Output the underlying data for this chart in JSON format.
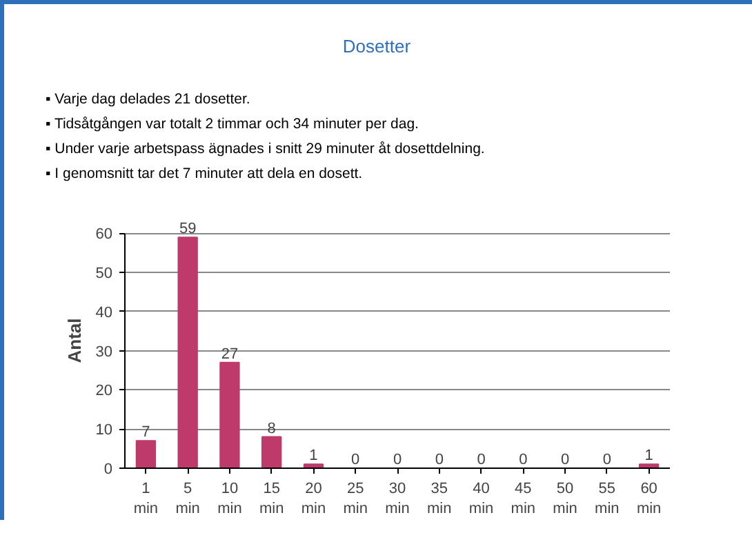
{
  "chart_data": {
    "type": "bar",
    "title": "Dosetter",
    "annotations": [
      "▪ Varje dag delades 21 dosetter.",
      "▪ Tidsåtgången var totalt 2 timmar och 34 minuter per dag.",
      "▪ Under varje arbetspass ägnades i snitt 29 minuter åt dosettdelning.",
      "▪ I genomsnitt tar det 7 minuter att dela en dosett."
    ],
    "categories": [
      "1 min",
      "5 min",
      "10 min",
      "15 min",
      "20 min",
      "25 min",
      "30 min",
      "35 min",
      "40 min",
      "45 min",
      "50 min",
      "55 min",
      "60 min"
    ],
    "values": [
      7,
      59,
      27,
      8,
      1,
      0,
      0,
      0,
      0,
      0,
      0,
      0,
      1
    ],
    "color": "#be3a6a",
    "ylabel": "Antal",
    "ylim": [
      0,
      60
    ],
    "yticks": [
      0,
      10,
      20,
      30,
      40,
      50,
      60
    ],
    "grid": "y",
    "data_labels": true
  }
}
